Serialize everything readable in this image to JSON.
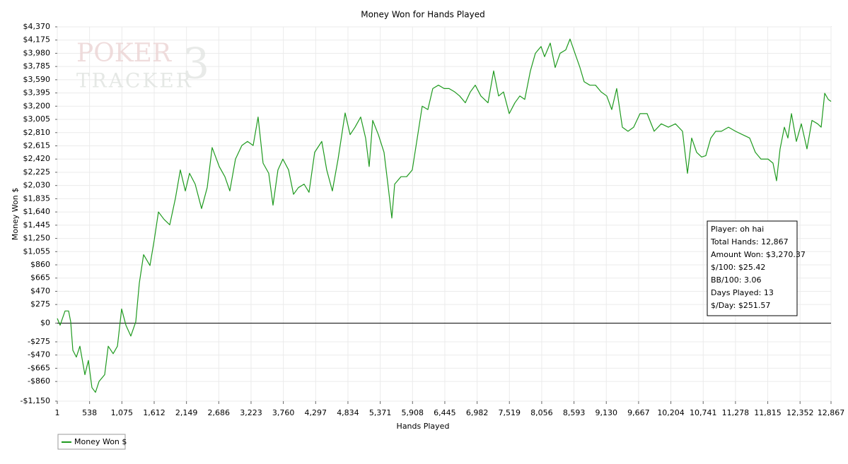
{
  "chart_data": {
    "type": "line",
    "title": "Money Won for Hands Played",
    "xlabel": "Hands Played",
    "ylabel": "Money Won $",
    "watermark": [
      "POKER",
      "TRACKER",
      "3"
    ],
    "stats": [
      "Player: oh hai",
      "Total Hands: 12,867",
      "Amount Won: $3,270.37",
      "$/100: $25.42",
      "BB/100: 3.06",
      "Days Played: 13",
      "$/Day: $251.57"
    ],
    "grid": true,
    "xlim": [
      1,
      12867
    ],
    "ylim": [
      -1150,
      4370
    ],
    "xticks": [
      1,
      538,
      {
        "value": 1075,
        "label": "1,075"
      },
      {
        "value": 1612,
        "label": "1,612"
      },
      {
        "value": 2149,
        "label": "2,149"
      },
      {
        "value": 2686,
        "label": "2,686"
      },
      {
        "value": 3223,
        "label": "3,223"
      },
      {
        "value": 3760,
        "label": "3,760"
      },
      {
        "value": 4297,
        "label": "4,297"
      },
      {
        "value": 4834,
        "label": "4,834"
      },
      {
        "value": 5371,
        "label": "5,371"
      },
      {
        "value": 5908,
        "label": "5,908"
      },
      {
        "value": 6445,
        "label": "6,445"
      },
      {
        "value": 6982,
        "label": "6,982"
      },
      {
        "value": 7519,
        "label": "7,519"
      },
      {
        "value": 8056,
        "label": "8,056"
      },
      {
        "value": 8593,
        "label": "8,593"
      },
      {
        "value": 9130,
        "label": "9,130"
      },
      {
        "value": 9667,
        "label": "9,667"
      },
      {
        "value": 10204,
        "label": "10,204"
      },
      {
        "value": 10741,
        "label": "10,741"
      },
      {
        "value": 11278,
        "label": "11,278"
      },
      {
        "value": 11815,
        "label": "11,815"
      },
      {
        "value": 12352,
        "label": "12,352"
      },
      {
        "value": 12867,
        "label": "12,867"
      }
    ],
    "yticks": [
      {
        "value": -1150,
        "label": "-$1,150"
      },
      {
        "value": -860,
        "label": "-$860"
      },
      {
        "value": -665,
        "label": "-$665"
      },
      {
        "value": -470,
        "label": "-$470"
      },
      {
        "value": -275,
        "label": "-$275"
      },
      {
        "value": 0,
        "label": "$0"
      },
      {
        "value": 275,
        "label": "$275"
      },
      {
        "value": 470,
        "label": "$470"
      },
      {
        "value": 665,
        "label": "$665"
      },
      {
        "value": 860,
        "label": "$860"
      },
      {
        "value": 1055,
        "label": "$1,055"
      },
      {
        "value": 1250,
        "label": "$1,250"
      },
      {
        "value": 1445,
        "label": "$1,445"
      },
      {
        "value": 1640,
        "label": "$1,640"
      },
      {
        "value": 1835,
        "label": "$1,835"
      },
      {
        "value": 2030,
        "label": "$2,030"
      },
      {
        "value": 2225,
        "label": "$2,225"
      },
      {
        "value": 2420,
        "label": "$2,420"
      },
      {
        "value": 2615,
        "label": "$2,615"
      },
      {
        "value": 2810,
        "label": "$2,810"
      },
      {
        "value": 3005,
        "label": "$3,005"
      },
      {
        "value": 3200,
        "label": "$3,200"
      },
      {
        "value": 3395,
        "label": "$3,395"
      },
      {
        "value": 3590,
        "label": "$3,590"
      },
      {
        "value": 3785,
        "label": "$3,785"
      },
      {
        "value": 3980,
        "label": "$3,980"
      },
      {
        "value": 4175,
        "label": "$4,175"
      },
      {
        "value": 4370,
        "label": "$4,370"
      }
    ],
    "x": [
      1,
      48,
      130,
      189,
      224,
      260,
      318,
      377,
      460,
      518,
      577,
      636,
      695,
      789,
      848,
      930,
      1001,
      1071,
      1142,
      1224,
      1306,
      1365,
      1436,
      1542,
      1612,
      1683,
      1777,
      1871,
      1965,
      2047,
      2130,
      2200,
      2294,
      2400,
      2494,
      2576,
      2694,
      2788,
      2870,
      2964,
      3070,
      3164,
      3258,
      3340,
      3423,
      3517,
      3588,
      3670,
      3752,
      3847,
      3929,
      4011,
      4105,
      4187,
      4281,
      4399,
      4481,
      4575,
      4670,
      4787,
      4870,
      4952,
      5046,
      5128,
      5187,
      5246,
      5340,
      5434,
      5505,
      5564,
      5611,
      5716,
      5810,
      5904,
      5987,
      6069,
      6163,
      6245,
      6339,
      6434,
      6516,
      6610,
      6692,
      6786,
      6869,
      6951,
      7045,
      7163,
      7257,
      7339,
      7421,
      7516,
      7610,
      7692,
      7774,
      7868,
      7951,
      8045,
      8104,
      8198,
      8280,
      8362,
      8456,
      8527,
      8609,
      8692,
      8762,
      8856,
      8950,
      9044,
      9138,
      9221,
      9303,
      9397,
      9491,
      9585,
      9691,
      9809,
      9926,
      10044,
      10162,
      10280,
      10397,
      10480,
      10550,
      10632,
      10715,
      10785,
      10868,
      10950,
      11044,
      11162,
      11279,
      11396,
      11514,
      11608,
      11702,
      11820,
      11902,
      11961,
      12020,
      12091,
      12150,
      12209,
      12291,
      12373,
      12467,
      12550,
      12644,
      12703,
      12762,
      12821,
      12867
    ],
    "series": [
      {
        "name": "Money Won $",
        "color": "#1f9a1f",
        "values": [
          70,
          -30,
          180,
          180,
          20,
          -400,
          -500,
          -340,
          -760,
          -550,
          -950,
          -1020,
          -860,
          -760,
          -340,
          -450,
          -340,
          210,
          -30,
          -190,
          20,
          590,
          1010,
          850,
          1220,
          1640,
          1530,
          1450,
          1840,
          2260,
          1950,
          2210,
          2050,
          1690,
          2000,
          2590,
          2310,
          2160,
          1950,
          2420,
          2620,
          2680,
          2620,
          3040,
          2360,
          2210,
          1740,
          2260,
          2420,
          2260,
          1900,
          2000,
          2050,
          1930,
          2520,
          2680,
          2260,
          1950,
          2420,
          3100,
          2780,
          2890,
          3040,
          2730,
          2310,
          2990,
          2780,
          2520,
          2000,
          1550,
          2050,
          2160,
          2160,
          2260,
          2730,
          3200,
          3150,
          3460,
          3510,
          3460,
          3460,
          3410,
          3350,
          3250,
          3410,
          3510,
          3350,
          3250,
          3720,
          3350,
          3410,
          3090,
          3250,
          3350,
          3300,
          3720,
          3980,
          4080,
          3930,
          4130,
          3770,
          3980,
          4030,
          4190,
          3980,
          3770,
          3560,
          3510,
          3510,
          3410,
          3350,
          3150,
          3460,
          2890,
          2830,
          2890,
          3090,
          3090,
          2830,
          2940,
          2890,
          2940,
          2830,
          2210,
          2730,
          2520,
          2450,
          2470,
          2730,
          2830,
          2830,
          2890,
          2830,
          2780,
          2730,
          2520,
          2420,
          2420,
          2360,
          2100,
          2570,
          2890,
          2730,
          3090,
          2680,
          2940,
          2570,
          2990,
          2940,
          2890,
          3390,
          3300,
          3270
        ]
      }
    ]
  }
}
